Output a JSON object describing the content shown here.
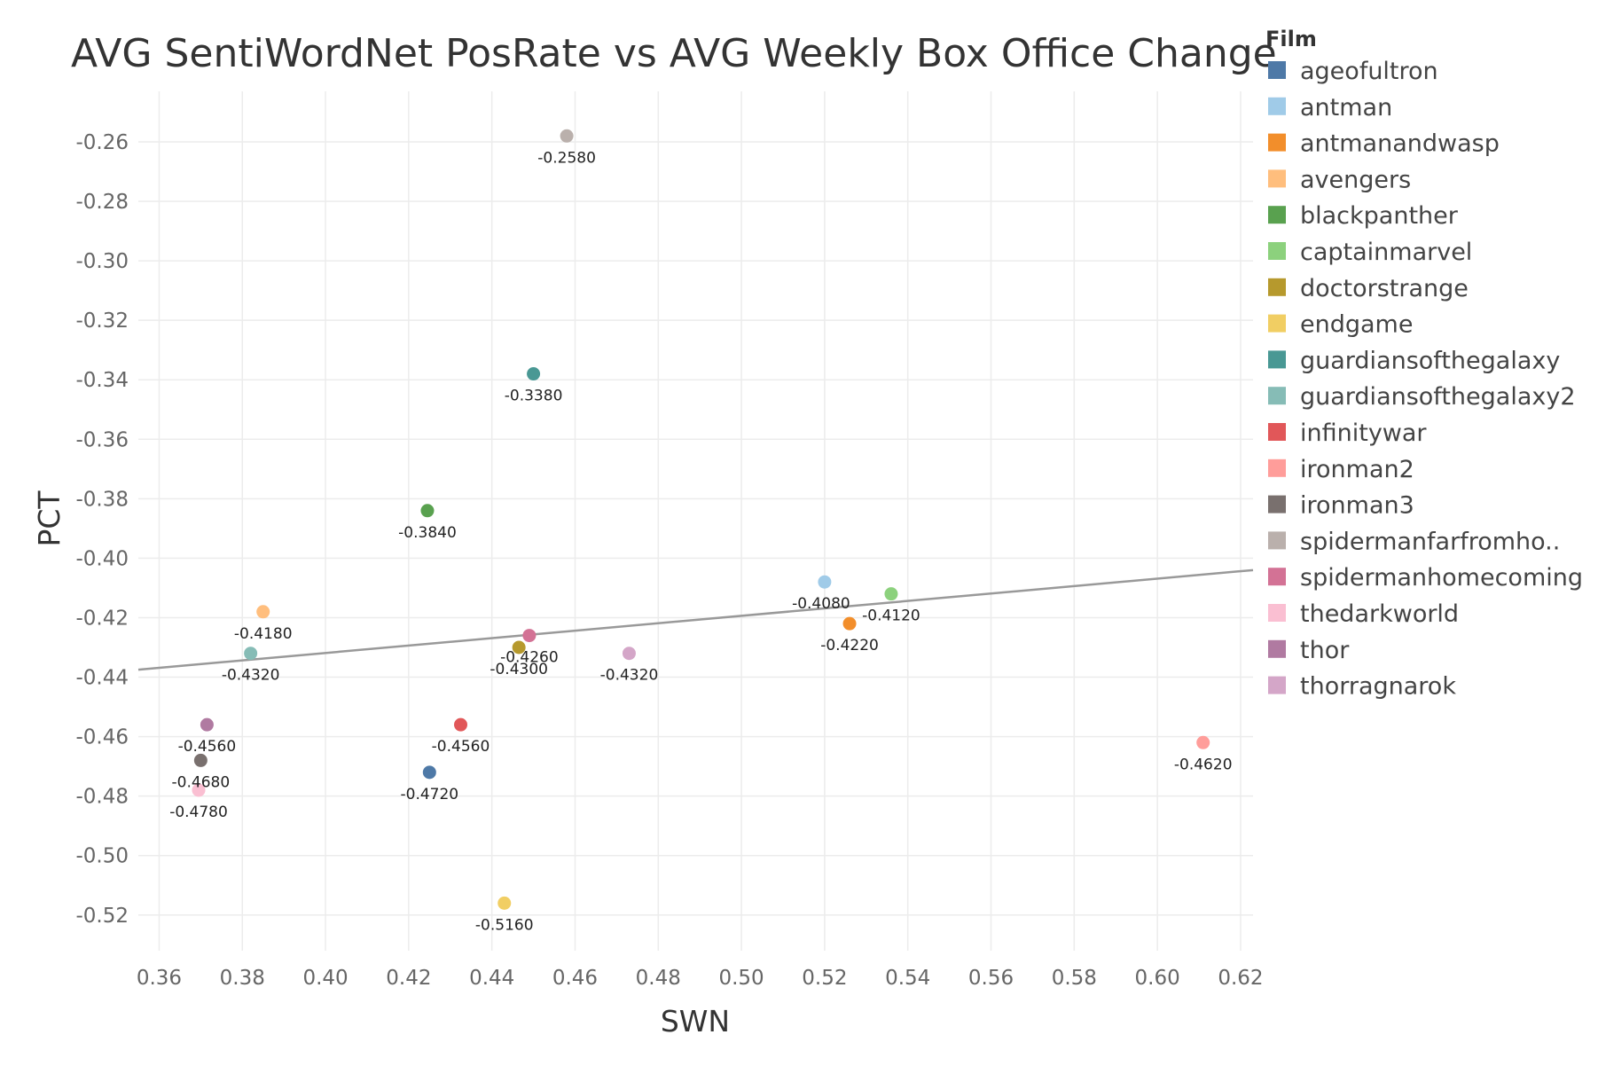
{
  "chart_data": {
    "type": "scatter",
    "title": "AVG SentiWordNet PosRate vs AVG Weekly Box Office Change",
    "xlabel": "SWN",
    "ylabel": "PCT",
    "xlim": [
      0.355,
      0.623
    ],
    "ylim": [
      -0.532,
      -0.243
    ],
    "x_ticks": [
      "0.36",
      "0.38",
      "0.40",
      "0.42",
      "0.44",
      "0.46",
      "0.48",
      "0.50",
      "0.52",
      "0.54",
      "0.56",
      "0.58",
      "0.60",
      "0.62"
    ],
    "y_ticks": [
      "-0.26",
      "-0.28",
      "-0.30",
      "-0.32",
      "-0.34",
      "-0.36",
      "-0.38",
      "-0.40",
      "-0.42",
      "-0.44",
      "-0.46",
      "-0.48",
      "-0.50",
      "-0.52"
    ],
    "grid": true,
    "legend": {
      "title": "Film",
      "placement": "right"
    },
    "trend_line": {
      "x": [
        0.355,
        0.623
      ],
      "y": [
        -0.4375,
        -0.404
      ]
    },
    "series": [
      {
        "name": "ageofultron",
        "color": "#4e79a7",
        "x": 0.425,
        "y": -0.472,
        "label": "-0.4720"
      },
      {
        "name": "antman",
        "color": "#a0cbe8",
        "x": 0.52,
        "y": -0.408,
        "label": "-0.4080"
      },
      {
        "name": "antmanandwasp",
        "color": "#f28e2b",
        "x": 0.526,
        "y": -0.422,
        "label": "-0.4220"
      },
      {
        "name": "avengers",
        "color": "#ffbe7d",
        "x": 0.385,
        "y": -0.418,
        "label": "-0.4180"
      },
      {
        "name": "blackpanther",
        "color": "#59a14f",
        "x": 0.4245,
        "y": -0.384,
        "label": "-0.3840"
      },
      {
        "name": "captainmarvel",
        "color": "#8cd17d",
        "x": 0.536,
        "y": -0.412,
        "label": "-0.4120"
      },
      {
        "name": "doctorstrange",
        "color": "#b6992d",
        "x": 0.4465,
        "y": -0.43,
        "label": "-0.4300"
      },
      {
        "name": "endgame",
        "color": "#f1ce63",
        "x": 0.443,
        "y": -0.516,
        "label": "-0.5160"
      },
      {
        "name": "guardiansofthegalaxy",
        "color": "#499894",
        "x": 0.45,
        "y": -0.338,
        "label": "-0.3380"
      },
      {
        "name": "guardiansofthegalaxy2",
        "color": "#86bcb6",
        "x": 0.382,
        "y": -0.432,
        "label": "-0.4320"
      },
      {
        "name": "infinitywar",
        "color": "#e15759",
        "x": 0.4325,
        "y": -0.456,
        "label": "-0.4560"
      },
      {
        "name": "ironman2",
        "color": "#ff9d9a",
        "x": 0.611,
        "y": -0.462,
        "label": "-0.4620"
      },
      {
        "name": "ironman3",
        "color": "#79706e",
        "x": 0.37,
        "y": -0.468,
        "label": "-0.4680"
      },
      {
        "name": "spidermanfarfromho..",
        "color": "#bab0ac",
        "x": 0.458,
        "y": -0.258,
        "label": "-0.2580"
      },
      {
        "name": "spidermanhomecoming",
        "color": "#d37295",
        "x": 0.449,
        "y": -0.426,
        "label": "-0.4260"
      },
      {
        "name": "thedarkworld",
        "color": "#fabfd2",
        "x": 0.3695,
        "y": -0.478,
        "label": "-0.4780"
      },
      {
        "name": "thor",
        "color": "#b07aa1",
        "x": 0.3715,
        "y": -0.456,
        "label": "-0.4560"
      },
      {
        "name": "thorragnarok",
        "color": "#d4a6c8",
        "x": 0.473,
        "y": -0.432,
        "label": "-0.4320"
      }
    ]
  }
}
